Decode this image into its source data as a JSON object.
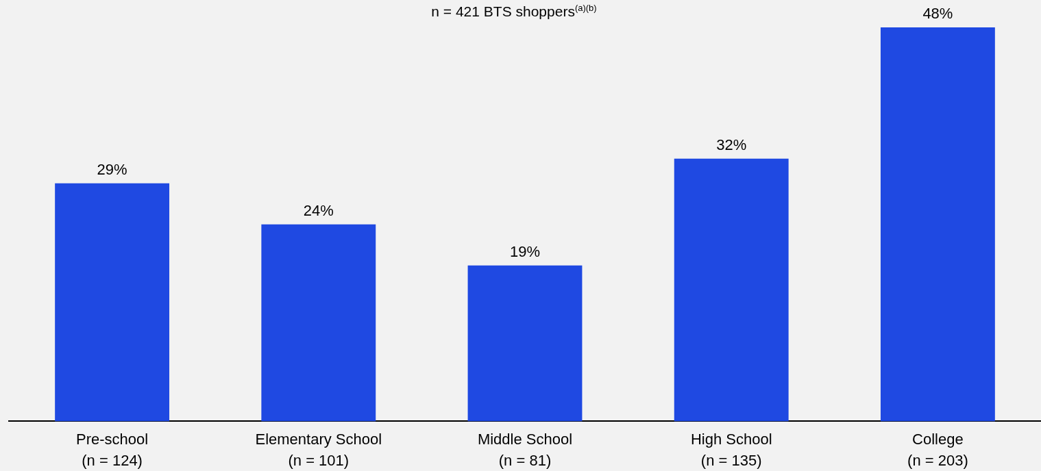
{
  "chart_data": {
    "type": "bar",
    "subtitle": "n = 421 BTS shoppers$^{(a)(b)}$",
    "categories": [
      "Pre-school\n(n = 124)",
      "Elementary School\n(n = 101)",
      "Middle School\n(n = 81)",
      "High School\n(n = 135)",
      "College\n(n = 203)"
    ],
    "values": [
      29,
      24,
      19,
      32,
      48
    ],
    "color": "#1f49e2",
    "value_labels": [
      "29%",
      "24%",
      "19%",
      "32%",
      "48%"
    ]
  }
}
